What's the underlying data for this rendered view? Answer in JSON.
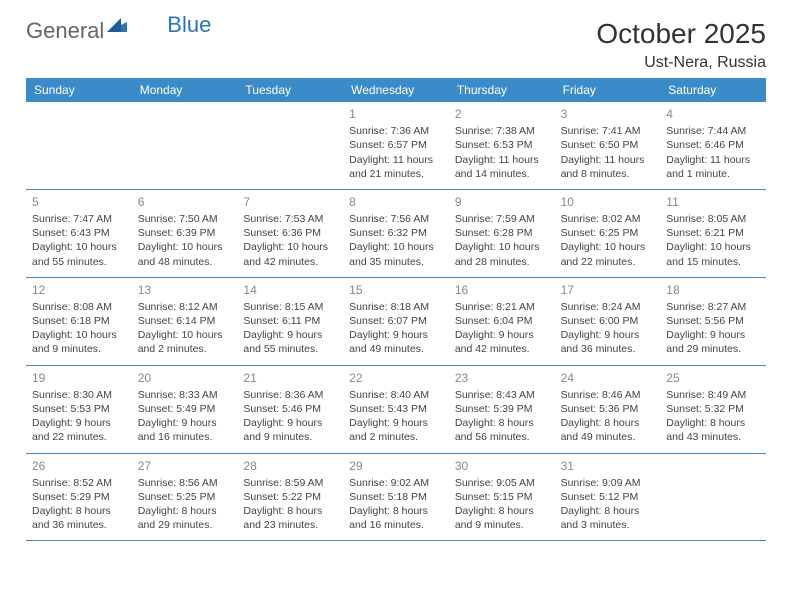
{
  "logo": {
    "text1": "General",
    "text2": "Blue"
  },
  "title": {
    "month": "October 2025",
    "location": "Ust-Nera, Russia"
  },
  "dayNames": [
    "Sunday",
    "Monday",
    "Tuesday",
    "Wednesday",
    "Thursday",
    "Friday",
    "Saturday"
  ],
  "colors": {
    "header_bg": "#3b8bc9",
    "header_text": "#ffffff",
    "divider": "#3b8bc9",
    "daynum": "#888888",
    "body_text": "#444444",
    "logo_gray": "#666666",
    "logo_blue": "#2a75bb"
  },
  "weeks": [
    [
      {
        "n": "",
        "sr": "",
        "ss": "",
        "dl": ""
      },
      {
        "n": "",
        "sr": "",
        "ss": "",
        "dl": ""
      },
      {
        "n": "",
        "sr": "",
        "ss": "",
        "dl": ""
      },
      {
        "n": "1",
        "sr": "Sunrise: 7:36 AM",
        "ss": "Sunset: 6:57 PM",
        "dl": "Daylight: 11 hours and 21 minutes."
      },
      {
        "n": "2",
        "sr": "Sunrise: 7:38 AM",
        "ss": "Sunset: 6:53 PM",
        "dl": "Daylight: 11 hours and 14 minutes."
      },
      {
        "n": "3",
        "sr": "Sunrise: 7:41 AM",
        "ss": "Sunset: 6:50 PM",
        "dl": "Daylight: 11 hours and 8 minutes."
      },
      {
        "n": "4",
        "sr": "Sunrise: 7:44 AM",
        "ss": "Sunset: 6:46 PM",
        "dl": "Daylight: 11 hours and 1 minute."
      }
    ],
    [
      {
        "n": "5",
        "sr": "Sunrise: 7:47 AM",
        "ss": "Sunset: 6:43 PM",
        "dl": "Daylight: 10 hours and 55 minutes."
      },
      {
        "n": "6",
        "sr": "Sunrise: 7:50 AM",
        "ss": "Sunset: 6:39 PM",
        "dl": "Daylight: 10 hours and 48 minutes."
      },
      {
        "n": "7",
        "sr": "Sunrise: 7:53 AM",
        "ss": "Sunset: 6:36 PM",
        "dl": "Daylight: 10 hours and 42 minutes."
      },
      {
        "n": "8",
        "sr": "Sunrise: 7:56 AM",
        "ss": "Sunset: 6:32 PM",
        "dl": "Daylight: 10 hours and 35 minutes."
      },
      {
        "n": "9",
        "sr": "Sunrise: 7:59 AM",
        "ss": "Sunset: 6:28 PM",
        "dl": "Daylight: 10 hours and 28 minutes."
      },
      {
        "n": "10",
        "sr": "Sunrise: 8:02 AM",
        "ss": "Sunset: 6:25 PM",
        "dl": "Daylight: 10 hours and 22 minutes."
      },
      {
        "n": "11",
        "sr": "Sunrise: 8:05 AM",
        "ss": "Sunset: 6:21 PM",
        "dl": "Daylight: 10 hours and 15 minutes."
      }
    ],
    [
      {
        "n": "12",
        "sr": "Sunrise: 8:08 AM",
        "ss": "Sunset: 6:18 PM",
        "dl": "Daylight: 10 hours and 9 minutes."
      },
      {
        "n": "13",
        "sr": "Sunrise: 8:12 AM",
        "ss": "Sunset: 6:14 PM",
        "dl": "Daylight: 10 hours and 2 minutes."
      },
      {
        "n": "14",
        "sr": "Sunrise: 8:15 AM",
        "ss": "Sunset: 6:11 PM",
        "dl": "Daylight: 9 hours and 55 minutes."
      },
      {
        "n": "15",
        "sr": "Sunrise: 8:18 AM",
        "ss": "Sunset: 6:07 PM",
        "dl": "Daylight: 9 hours and 49 minutes."
      },
      {
        "n": "16",
        "sr": "Sunrise: 8:21 AM",
        "ss": "Sunset: 6:04 PM",
        "dl": "Daylight: 9 hours and 42 minutes."
      },
      {
        "n": "17",
        "sr": "Sunrise: 8:24 AM",
        "ss": "Sunset: 6:00 PM",
        "dl": "Daylight: 9 hours and 36 minutes."
      },
      {
        "n": "18",
        "sr": "Sunrise: 8:27 AM",
        "ss": "Sunset: 5:56 PM",
        "dl": "Daylight: 9 hours and 29 minutes."
      }
    ],
    [
      {
        "n": "19",
        "sr": "Sunrise: 8:30 AM",
        "ss": "Sunset: 5:53 PM",
        "dl": "Daylight: 9 hours and 22 minutes."
      },
      {
        "n": "20",
        "sr": "Sunrise: 8:33 AM",
        "ss": "Sunset: 5:49 PM",
        "dl": "Daylight: 9 hours and 16 minutes."
      },
      {
        "n": "21",
        "sr": "Sunrise: 8:36 AM",
        "ss": "Sunset: 5:46 PM",
        "dl": "Daylight: 9 hours and 9 minutes."
      },
      {
        "n": "22",
        "sr": "Sunrise: 8:40 AM",
        "ss": "Sunset: 5:43 PM",
        "dl": "Daylight: 9 hours and 2 minutes."
      },
      {
        "n": "23",
        "sr": "Sunrise: 8:43 AM",
        "ss": "Sunset: 5:39 PM",
        "dl": "Daylight: 8 hours and 56 minutes."
      },
      {
        "n": "24",
        "sr": "Sunrise: 8:46 AM",
        "ss": "Sunset: 5:36 PM",
        "dl": "Daylight: 8 hours and 49 minutes."
      },
      {
        "n": "25",
        "sr": "Sunrise: 8:49 AM",
        "ss": "Sunset: 5:32 PM",
        "dl": "Daylight: 8 hours and 43 minutes."
      }
    ],
    [
      {
        "n": "26",
        "sr": "Sunrise: 8:52 AM",
        "ss": "Sunset: 5:29 PM",
        "dl": "Daylight: 8 hours and 36 minutes."
      },
      {
        "n": "27",
        "sr": "Sunrise: 8:56 AM",
        "ss": "Sunset: 5:25 PM",
        "dl": "Daylight: 8 hours and 29 minutes."
      },
      {
        "n": "28",
        "sr": "Sunrise: 8:59 AM",
        "ss": "Sunset: 5:22 PM",
        "dl": "Daylight: 8 hours and 23 minutes."
      },
      {
        "n": "29",
        "sr": "Sunrise: 9:02 AM",
        "ss": "Sunset: 5:18 PM",
        "dl": "Daylight: 8 hours and 16 minutes."
      },
      {
        "n": "30",
        "sr": "Sunrise: 9:05 AM",
        "ss": "Sunset: 5:15 PM",
        "dl": "Daylight: 8 hours and 9 minutes."
      },
      {
        "n": "31",
        "sr": "Sunrise: 9:09 AM",
        "ss": "Sunset: 5:12 PM",
        "dl": "Daylight: 8 hours and 3 minutes."
      },
      {
        "n": "",
        "sr": "",
        "ss": "",
        "dl": ""
      }
    ]
  ]
}
